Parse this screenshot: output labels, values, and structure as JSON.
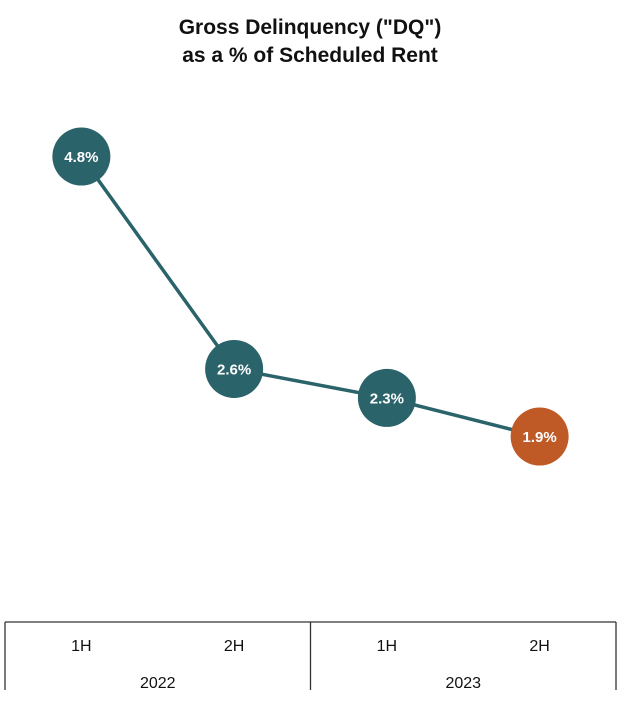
{
  "chart_data": {
    "type": "line",
    "title_lines": [
      "Gross Delinquency (\"DQ\")",
      "as a % of Scheduled Rent"
    ],
    "categories": [
      "1H",
      "2H",
      "1H",
      "2H"
    ],
    "groups": [
      {
        "label": "2022",
        "categories": [
          "1H",
          "2H"
        ]
      },
      {
        "label": "2023",
        "categories": [
          "1H",
          "2H"
        ]
      }
    ],
    "series": [
      {
        "values": [
          4.8,
          2.6,
          2.3,
          1.9
        ]
      }
    ],
    "data_labels": [
      "4.8%",
      "2.6%",
      "2.3%",
      "1.9%"
    ],
    "unit": "%",
    "ylim": [
      0,
      5.8
    ],
    "grid": false,
    "legend": "none",
    "colors": {
      "series": "#2a636a",
      "highlight": "#bf5a27",
      "label_text": "#ffffff",
      "axis": "#333333"
    },
    "highlight_index": 3
  }
}
